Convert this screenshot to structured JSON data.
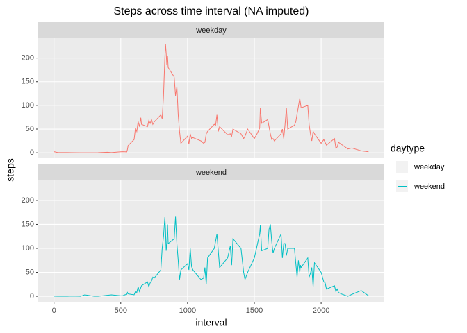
{
  "chart_data": {
    "type": "line",
    "title": "Steps across time interval (NA imputed)",
    "x_label": "interval",
    "y_label": "steps",
    "legend_title": "daytype",
    "facet": true,
    "grid": true,
    "xlim": [
      -118,
      2473
    ],
    "xticks": [
      0,
      500,
      1000,
      1500,
      2000
    ],
    "ylim": [
      -11.5,
      241.9
    ],
    "yticks": [
      0,
      50,
      100,
      150,
      200
    ],
    "x": [
      0,
      30,
      100,
      130,
      200,
      230,
      300,
      330,
      400,
      430,
      500,
      515,
      530,
      545,
      550,
      555,
      600,
      610,
      620,
      630,
      640,
      650,
      655,
      700,
      710,
      720,
      730,
      740,
      750,
      800,
      810,
      820,
      830,
      835,
      840,
      845,
      850,
      855,
      900,
      910,
      920,
      930,
      940,
      950,
      1000,
      1010,
      1020,
      1030,
      1040,
      1100,
      1120,
      1130,
      1140,
      1150,
      1200,
      1210,
      1220,
      1230,
      1240,
      1300,
      1320,
      1330,
      1340,
      1400,
      1420,
      1430,
      1450,
      1500,
      1520,
      1540,
      1545,
      1555,
      1600,
      1610,
      1620,
      1630,
      1640,
      1650,
      1700,
      1710,
      1720,
      1730,
      1740,
      1750,
      1800,
      1810,
      1820,
      1830,
      1840,
      1845,
      1850,
      1900,
      1910,
      1920,
      1930,
      1940,
      1950,
      2000,
      2020,
      2030,
      2040,
      2100,
      2110,
      2120,
      2130,
      2150,
      2200,
      2230,
      2300,
      2330,
      2355
    ],
    "series": [
      {
        "name": "weekday",
        "color": "#f8766d",
        "values": [
          2.3,
          0.4,
          0.4,
          0.2,
          0,
          0,
          0,
          0.2,
          1.2,
          0.4,
          2,
          2.2,
          2,
          1.8,
          7,
          15,
          28,
          52,
          45,
          66,
          55,
          74,
          60,
          55,
          68,
          62,
          70,
          60,
          65,
          80,
          72,
          120,
          200,
          230,
          210,
          185,
          205,
          180,
          160,
          120,
          140,
          80,
          45,
          20,
          35,
          18,
          40,
          30,
          32,
          25,
          20,
          22,
          40,
          45,
          60,
          58,
          80,
          45,
          55,
          38,
          40,
          35,
          50,
          40,
          30,
          35,
          50,
          30,
          40,
          52,
          95,
          62,
          70,
          55,
          40,
          28,
          30,
          25,
          40,
          50,
          30,
          60,
          95,
          50,
          58,
          65,
          82,
          98,
          115,
          105,
          95,
          100,
          60,
          40,
          25,
          45,
          40,
          20,
          28,
          22,
          16,
          30,
          10,
          12,
          22,
          18,
          8,
          10,
          4,
          3,
          2
        ]
      },
      {
        "name": "weekend",
        "color": "#00bfc4",
        "values": [
          0.2,
          0.1,
          0.1,
          0.5,
          0,
          3,
          0,
          0,
          2,
          3,
          1,
          1,
          3,
          4,
          8,
          5,
          3,
          10,
          8,
          20,
          10,
          18,
          22,
          30,
          20,
          28,
          32,
          40,
          38,
          55,
          100,
          125,
          165,
          140,
          95,
          110,
          150,
          110,
          120,
          166,
          110,
          75,
          35,
          55,
          68,
          55,
          100,
          62,
          55,
          35,
          38,
          60,
          25,
          80,
          100,
          115,
          130,
          95,
          60,
          80,
          105,
          65,
          120,
          100,
          50,
          35,
          50,
          80,
          105,
          130,
          148,
          95,
          100,
          140,
          150,
          115,
          90,
          100,
          130,
          80,
          110,
          110,
          85,
          100,
          100,
          70,
          40,
          75,
          50,
          65,
          60,
          80,
          40,
          48,
          60,
          20,
          70,
          50,
          30,
          28,
          15,
          22,
          10,
          15,
          8,
          5,
          0,
          4,
          12,
          6,
          1
        ]
      }
    ]
  }
}
